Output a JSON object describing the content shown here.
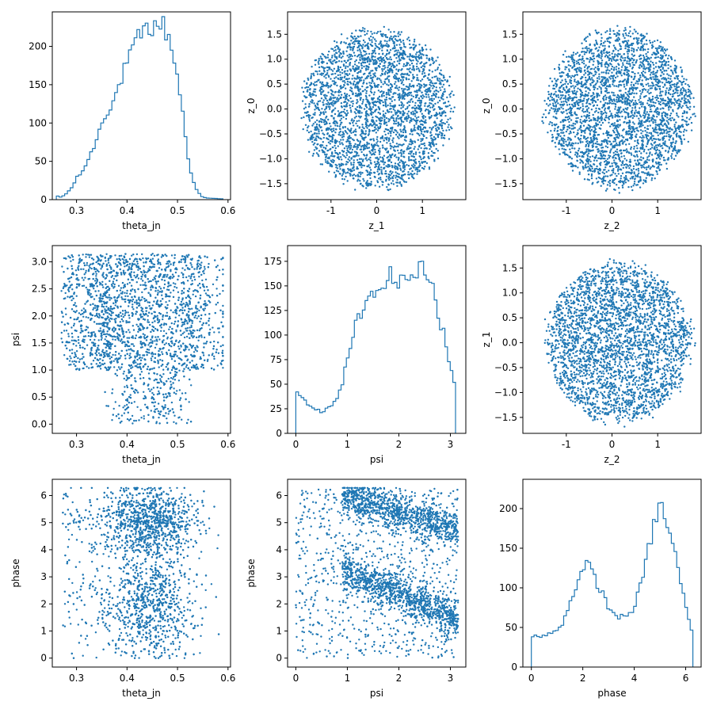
{
  "figure": {
    "color": "#1f77b4",
    "rows": 3,
    "cols": 3
  },
  "chart_data": [
    {
      "type": "histogram",
      "panel": "r0c0",
      "xlabel": "theta_jn",
      "ylabel": "",
      "xlim": [
        0.252,
        0.605
      ],
      "ylim": [
        0,
        245
      ],
      "xticks": [
        0.3,
        0.4,
        0.5,
        0.6
      ],
      "yticks": [
        0,
        50,
        100,
        150,
        200
      ],
      "curve": [
        [
          0.26,
          5
        ],
        [
          0.27,
          3
        ],
        [
          0.28,
          8
        ],
        [
          0.29,
          15
        ],
        [
          0.3,
          28
        ],
        [
          0.31,
          35
        ],
        [
          0.32,
          48
        ],
        [
          0.33,
          62
        ],
        [
          0.34,
          80
        ],
        [
          0.35,
          100
        ],
        [
          0.36,
          115
        ],
        [
          0.37,
          125
        ],
        [
          0.38,
          140
        ],
        [
          0.39,
          160
        ],
        [
          0.4,
          178
        ],
        [
          0.41,
          192
        ],
        [
          0.42,
          208
        ],
        [
          0.43,
          218
        ],
        [
          0.44,
          222
        ],
        [
          0.45,
          225
        ],
        [
          0.46,
          228
        ],
        [
          0.47,
          230
        ],
        [
          0.48,
          215
        ],
        [
          0.49,
          195
        ],
        [
          0.5,
          160
        ],
        [
          0.51,
          115
        ],
        [
          0.52,
          60
        ],
        [
          0.53,
          25
        ],
        [
          0.54,
          10
        ],
        [
          0.55,
          3
        ],
        [
          0.56,
          2
        ],
        [
          0.59,
          1
        ]
      ]
    },
    {
      "type": "scatter",
      "panel": "r0c1",
      "xlabel": "z_1",
      "ylabel": "z_0",
      "xlim": [
        -1.95,
        1.95
      ],
      "ylim": [
        -1.82,
        1.95
      ],
      "xticks": [
        -1,
        0,
        1
      ],
      "yticks": [
        -1.5,
        -1.0,
        -0.5,
        0.0,
        0.5,
        1.0,
        1.5
      ],
      "distribution": {
        "shape": "disc",
        "center": [
          0,
          0
        ],
        "rx": 1.75,
        "ry": 1.7,
        "points": 3000
      }
    },
    {
      "type": "scatter",
      "panel": "r0c2",
      "xlabel": "z_2",
      "ylabel": "z_0",
      "xlim": [
        -1.95,
        1.95
      ],
      "ylim": [
        -1.82,
        1.95
      ],
      "xticks": [
        -1,
        0,
        1
      ],
      "yticks": [
        -1.5,
        -1.0,
        -0.5,
        0.0,
        0.5,
        1.0,
        1.5
      ],
      "distribution": {
        "shape": "disc",
        "center": [
          0.15,
          0
        ],
        "rx": 1.7,
        "ry": 1.7,
        "points": 3000
      }
    },
    {
      "type": "scatter",
      "panel": "r1c0",
      "xlabel": "theta_jn",
      "ylabel": "psi",
      "xlim": [
        0.252,
        0.605
      ],
      "ylim": [
        -0.17,
        3.3
      ],
      "xticks": [
        0.3,
        0.4,
        0.5,
        0.6
      ],
      "yticks": [
        0.0,
        0.5,
        1.0,
        1.5,
        2.0,
        2.5,
        3.0
      ],
      "distribution": {
        "shape": "theta_psi",
        "points": 3000
      }
    },
    {
      "type": "histogram",
      "panel": "r1c1",
      "xlabel": "psi",
      "ylabel": "",
      "xlim": [
        -0.16,
        3.3
      ],
      "ylim": [
        0,
        191
      ],
      "xticks": [
        0,
        1,
        2,
        3
      ],
      "yticks": [
        0,
        25,
        50,
        75,
        100,
        125,
        150,
        175
      ],
      "curve": [
        [
          0.0,
          45
        ],
        [
          0.1,
          38
        ],
        [
          0.2,
          32
        ],
        [
          0.3,
          28
        ],
        [
          0.4,
          25
        ],
        [
          0.5,
          22
        ],
        [
          0.6,
          25
        ],
        [
          0.7,
          28
        ],
        [
          0.8,
          35
        ],
        [
          0.9,
          50
        ],
        [
          1.0,
          75
        ],
        [
          1.1,
          100
        ],
        [
          1.2,
          115
        ],
        [
          1.3,
          125
        ],
        [
          1.4,
          132
        ],
        [
          1.5,
          140
        ],
        [
          1.6,
          145
        ],
        [
          1.7,
          155
        ],
        [
          1.8,
          160
        ],
        [
          1.9,
          160
        ],
        [
          2.0,
          150
        ],
        [
          2.1,
          160
        ],
        [
          2.2,
          158
        ],
        [
          2.3,
          162
        ],
        [
          2.4,
          165
        ],
        [
          2.5,
          170
        ],
        [
          2.6,
          160
        ],
        [
          2.7,
          140
        ],
        [
          2.8,
          115
        ],
        [
          2.9,
          95
        ],
        [
          3.0,
          65
        ],
        [
          3.1,
          50
        ]
      ]
    },
    {
      "type": "scatter",
      "panel": "r1c2",
      "xlabel": "z_2",
      "ylabel": "z_1",
      "xlim": [
        -1.95,
        1.95
      ],
      "ylim": [
        -1.82,
        1.95
      ],
      "xticks": [
        -1,
        0,
        1
      ],
      "yticks": [
        -1.5,
        -1.0,
        -0.5,
        0.0,
        0.5,
        1.0,
        1.5
      ],
      "distribution": {
        "shape": "disc",
        "center": [
          0.15,
          0
        ],
        "rx": 1.7,
        "ry": 1.7,
        "points": 3000
      }
    },
    {
      "type": "scatter",
      "panel": "r2c0",
      "xlabel": "theta_jn",
      "ylabel": "phase",
      "xlim": [
        0.252,
        0.605
      ],
      "ylim": [
        -0.33,
        6.6
      ],
      "xticks": [
        0.3,
        0.4,
        0.5,
        0.6
      ],
      "yticks": [
        0,
        1,
        2,
        3,
        4,
        5,
        6
      ],
      "distribution": {
        "shape": "theta_phase",
        "points": 3000
      }
    },
    {
      "type": "scatter",
      "panel": "r2c1",
      "xlabel": "psi",
      "ylabel": "phase",
      "xlim": [
        -0.16,
        3.3
      ],
      "ylim": [
        -0.33,
        6.6
      ],
      "xticks": [
        0,
        1,
        2,
        3
      ],
      "yticks": [
        0,
        1,
        2,
        3,
        4,
        5,
        6
      ],
      "distribution": {
        "shape": "psi_phase",
        "points": 3200
      }
    },
    {
      "type": "histogram",
      "panel": "r2c2",
      "xlabel": "phase",
      "ylabel": "",
      "xlim": [
        -0.33,
        6.6
      ],
      "ylim": [
        0,
        237
      ],
      "xticks": [
        0,
        2,
        4,
        6
      ],
      "yticks": [
        0,
        50,
        100,
        150,
        200
      ],
      "curve": [
        [
          0.0,
          40
        ],
        [
          0.3,
          38
        ],
        [
          0.6,
          40
        ],
        [
          0.9,
          45
        ],
        [
          1.2,
          55
        ],
        [
          1.5,
          80
        ],
        [
          1.8,
          110
        ],
        [
          2.0,
          120
        ],
        [
          2.2,
          130
        ],
        [
          2.5,
          110
        ],
        [
          2.8,
          90
        ],
        [
          3.0,
          75
        ],
        [
          3.3,
          65
        ],
        [
          3.6,
          62
        ],
        [
          3.9,
          70
        ],
        [
          4.2,
          95
        ],
        [
          4.5,
          140
        ],
        [
          4.8,
          185
        ],
        [
          5.0,
          205
        ],
        [
          5.2,
          190
        ],
        [
          5.5,
          155
        ],
        [
          5.8,
          110
        ],
        [
          6.0,
          75
        ],
        [
          6.2,
          50
        ],
        [
          6.28,
          45
        ]
      ]
    }
  ]
}
